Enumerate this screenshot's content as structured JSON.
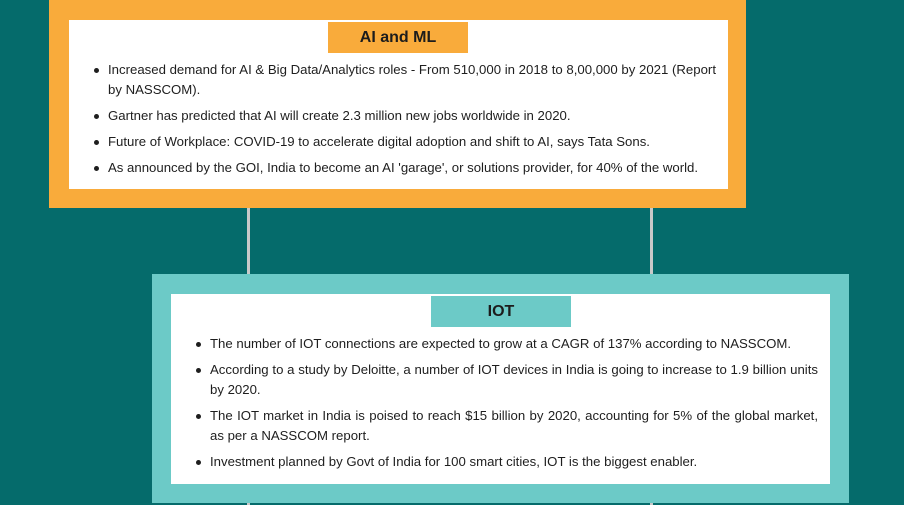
{
  "ai_panel": {
    "title": "AI and ML",
    "items": [
      "Increased demand for AI & Big Data/Analytics roles - From 510,000 in 2018 to 8,00,000 by 2021 (Report by NASSCOM).",
      "Gartner has predicted that AI will create 2.3 million new jobs worldwide in 2020.",
      "Future of Workplace: COVID-19 to accelerate digital adoption and shift to AI, says Tata Sons.",
      "As announced by the GOI, India to become an AI 'garage', or solutions provider, for 40% of the world."
    ]
  },
  "iot_panel": {
    "title": "IOT",
    "items": [
      "The number of IOT connections are expected to grow at a CAGR of 137% according to NASSCOM.",
      "According to a study by Deloitte, a number of IOT devices in India is going to increase to 1.9 billion units by 2020.",
      "The IOT market in India is poised to reach $15 billion by 2020, accounting for 5% of the global market, as per a NASSCOM report.",
      "Investment planned by Govt of India for 100 smart cities, IOT is the biggest enabler."
    ]
  },
  "colors": {
    "background": "#056b6b",
    "ai_accent": "#f9ab3b",
    "iot_accent": "#6ccac7"
  }
}
